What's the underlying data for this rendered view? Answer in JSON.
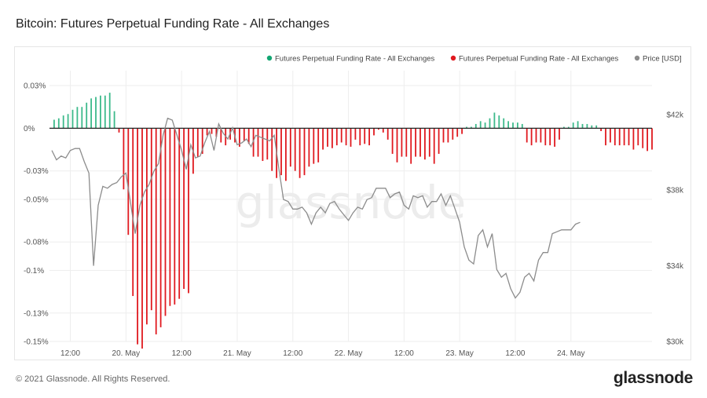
{
  "header": {
    "title": "Bitcoin: Futures Perpetual Funding Rate - All Exchanges"
  },
  "footer": {
    "copyright": "© 2021 Glassnode. All Rights Reserved.",
    "logo_text": "glassnode"
  },
  "colors": {
    "positive": "#3dba8b",
    "negative": "#e0191f",
    "price": "#8c8c8c",
    "zero_line": "#222222",
    "grid": "#eeeeee"
  },
  "chart_data": {
    "type": "bar",
    "watermark": "glassnode",
    "legend": [
      {
        "label": "Futures Perpetual Funding Rate - All Exchanges",
        "color": "#12a672"
      },
      {
        "label": "Futures Perpetual Funding Rate - All Exchanges",
        "color": "#e0191f"
      },
      {
        "label": "Price [USD]",
        "color": "#8c8c8c"
      }
    ],
    "x_range_hours": [
      -16.5,
      113.5
    ],
    "x_ticks": [
      {
        "label": "12:00",
        "hour": -12
      },
      {
        "label": "20. May",
        "hour": 0
      },
      {
        "label": "12:00",
        "hour": 12
      },
      {
        "label": "21. May",
        "hour": 24
      },
      {
        "label": "12:00",
        "hour": 36
      },
      {
        "label": "22. May",
        "hour": 48
      },
      {
        "label": "12:00",
        "hour": 60
      },
      {
        "label": "23. May",
        "hour": 72
      },
      {
        "label": "12:00",
        "hour": 84
      },
      {
        "label": "24. May",
        "hour": 96
      }
    ],
    "y_left": {
      "range": [
        -0.15,
        0.035
      ],
      "ticks": [
        {
          "label": "0.03%",
          "value": 0.03
        },
        {
          "label": "0%",
          "value": 0
        },
        {
          "label": "-0.03%",
          "value": -0.03
        },
        {
          "label": "-0.05%",
          "value": -0.05
        },
        {
          "label": "-0.08%",
          "value": -0.08
        },
        {
          "label": "-0.1%",
          "value": -0.1
        },
        {
          "label": "-0.13%",
          "value": -0.13
        },
        {
          "label": "-0.15%",
          "value": -0.15
        }
      ]
    },
    "y_right": {
      "range": [
        30000,
        43900
      ],
      "ticks": [
        {
          "label": "$42k",
          "value": 42000
        },
        {
          "label": "$38k",
          "value": 38000
        },
        {
          "label": "$34k",
          "value": 34000
        },
        {
          "label": "$30k",
          "value": 30000
        }
      ]
    },
    "funding_rate_hour_step": 1,
    "funding_rate_start_hour": -15.5,
    "funding_rate_values": [
      0.006,
      0.007,
      0.009,
      0.01,
      0.013,
      0.015,
      0.015,
      0.018,
      0.021,
      0.022,
      0.023,
      0.023,
      0.025,
      0.012,
      -0.003,
      -0.043,
      -0.075,
      -0.118,
      -0.152,
      -0.155,
      -0.138,
      -0.128,
      -0.145,
      -0.14,
      -0.132,
      -0.125,
      -0.124,
      -0.12,
      -0.113,
      -0.116,
      -0.032,
      -0.02,
      -0.018,
      -0.005,
      -0.004,
      -0.006,
      -0.01,
      -0.012,
      -0.008,
      -0.01,
      -0.013,
      -0.009,
      -0.011,
      -0.02,
      -0.02,
      -0.023,
      -0.022,
      -0.03,
      -0.035,
      -0.033,
      -0.037,
      -0.027,
      -0.03,
      -0.035,
      -0.033,
      -0.027,
      -0.025,
      -0.024,
      -0.015,
      -0.013,
      -0.014,
      -0.012,
      -0.01,
      -0.012,
      -0.013,
      -0.008,
      -0.012,
      -0.011,
      -0.012,
      -0.005,
      -0.001,
      -0.003,
      -0.008,
      -0.018,
      -0.024,
      -0.02,
      -0.02,
      -0.025,
      -0.02,
      -0.02,
      -0.022,
      -0.02,
      -0.025,
      -0.018,
      -0.01,
      -0.01,
      -0.008,
      -0.006,
      -0.004,
      0.001,
      0.001,
      0.003,
      0.005,
      0.004,
      0.007,
      0.011,
      0.009,
      0.007,
      0.005,
      0.004,
      0.004,
      0.003,
      -0.01,
      -0.012,
      -0.01,
      -0.01,
      -0.012,
      -0.012,
      -0.013,
      -0.008,
      0.001,
      0.001,
      0.004,
      0.005,
      0.003,
      0.003,
      0.002,
      0.002,
      -0.002,
      -0.012,
      -0.01,
      -0.012,
      -0.012,
      -0.012,
      -0.012,
      -0.015,
      -0.012,
      -0.014,
      -0.016,
      -0.015
    ],
    "price_x_hours": [
      -16,
      -15,
      -14,
      -13,
      -12,
      -11,
      -10,
      -9,
      -8,
      -7,
      -6,
      -5,
      -4,
      -3,
      -2,
      -1,
      0,
      1,
      2,
      3,
      4,
      5,
      6,
      7,
      8,
      9,
      10,
      11,
      12,
      13,
      14,
      15,
      16,
      17,
      18,
      19,
      20,
      21,
      22,
      23,
      24,
      25,
      26,
      27,
      28,
      29,
      30,
      31,
      32,
      33,
      34,
      35,
      36,
      37,
      38,
      39,
      40,
      41,
      42,
      43,
      44,
      45,
      46,
      47,
      48,
      49,
      50,
      51,
      52,
      53,
      54,
      55,
      56,
      57,
      58,
      59,
      60,
      61,
      62,
      63,
      64,
      65,
      66,
      67,
      68,
      69,
      70,
      71,
      72,
      73,
      74,
      75,
      76,
      77,
      78,
      79,
      80,
      81,
      82,
      83,
      84,
      85,
      86,
      87,
      88,
      89,
      90,
      91,
      92,
      93,
      94,
      95,
      96,
      97,
      98
    ],
    "price_values": [
      40100,
      39600,
      39800,
      39700,
      40100,
      40200,
      40200,
      39500,
      38900,
      34000,
      37200,
      38200,
      38100,
      38300,
      38400,
      38700,
      38900,
      37300,
      35700,
      37200,
      37900,
      38300,
      39000,
      39400,
      40900,
      41800,
      41700,
      40900,
      40100,
      39100,
      40400,
      39700,
      39800,
      40500,
      41100,
      40100,
      41500,
      41000,
      40700,
      41300,
      40400,
      40500,
      40700,
      40300,
      40900,
      40800,
      40700,
      40600,
      40900,
      39100,
      37500,
      37400,
      37000,
      37000,
      37100,
      36800,
      36200,
      36800,
      37100,
      36800,
      37300,
      37400,
      37000,
      36700,
      36400,
      36800,
      37100,
      37000,
      37500,
      37600,
      38100,
      38100,
      38100,
      37600,
      37800,
      37900,
      37200,
      37000,
      37700,
      37600,
      37700,
      37100,
      37400,
      37400,
      37800,
      37200,
      37700,
      37000,
      36300,
      35000,
      34300,
      34100,
      35600,
      35900,
      35000,
      35700,
      33800,
      33400,
      33600,
      32800,
      32300,
      32600,
      33400,
      33600,
      33200,
      34300,
      34700,
      34700,
      35700,
      35800,
      35900,
      35900,
      35900,
      36200,
      36300
    ]
  }
}
